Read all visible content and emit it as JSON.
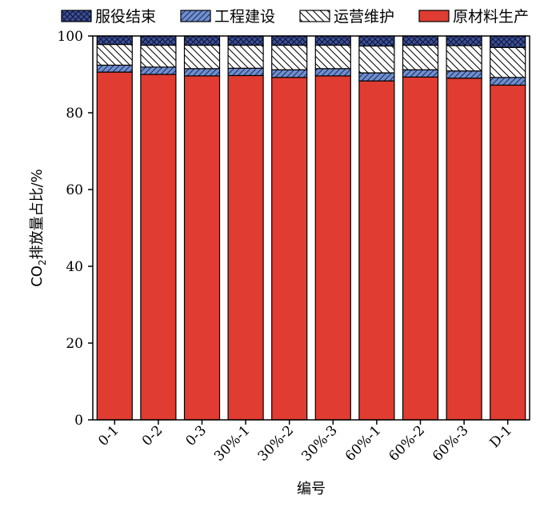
{
  "chart_data": {
    "type": "bar",
    "stacked": true,
    "title": "",
    "xlabel": "编号",
    "ylabel_prefix": "CO",
    "ylabel_sub": "2",
    "ylabel_suffix": "排放量占比/%",
    "ylim": [
      0,
      100
    ],
    "yticks": [
      0,
      20,
      40,
      60,
      80,
      100
    ],
    "grid": false,
    "legend_position": "top",
    "categories": [
      "0-1",
      "0-2",
      "0-3",
      "30%-1",
      "30%-2",
      "30%-3",
      "60%-1",
      "60%-2",
      "60%-3",
      "D-1"
    ],
    "series": [
      {
        "name": "原材料生产",
        "color": "#e03c31",
        "pattern": "solid",
        "values": [
          90.6,
          90.0,
          89.6,
          89.7,
          89.2,
          89.6,
          88.3,
          89.3,
          89.0,
          87.2
        ]
      },
      {
        "name": "工程建设",
        "color": "#6f8fd0",
        "pattern": "diagonal-up",
        "values": [
          1.8,
          1.9,
          1.9,
          1.9,
          2.0,
          1.9,
          2.1,
          1.9,
          1.9,
          2.0
        ]
      },
      {
        "name": "运营维护",
        "color": "#ffffff",
        "pattern": "diagonal-down",
        "values": [
          5.4,
          5.7,
          6.1,
          6.0,
          6.4,
          6.1,
          7.0,
          6.4,
          6.6,
          7.8
        ]
      },
      {
        "name": "服役结束",
        "color": "#3c4f97",
        "pattern": "crosshatch",
        "values": [
          2.2,
          2.4,
          2.4,
          2.4,
          2.4,
          2.4,
          2.6,
          2.4,
          2.5,
          3.0
        ]
      }
    ],
    "legend_order": [
      3,
      1,
      2,
      0
    ]
  }
}
